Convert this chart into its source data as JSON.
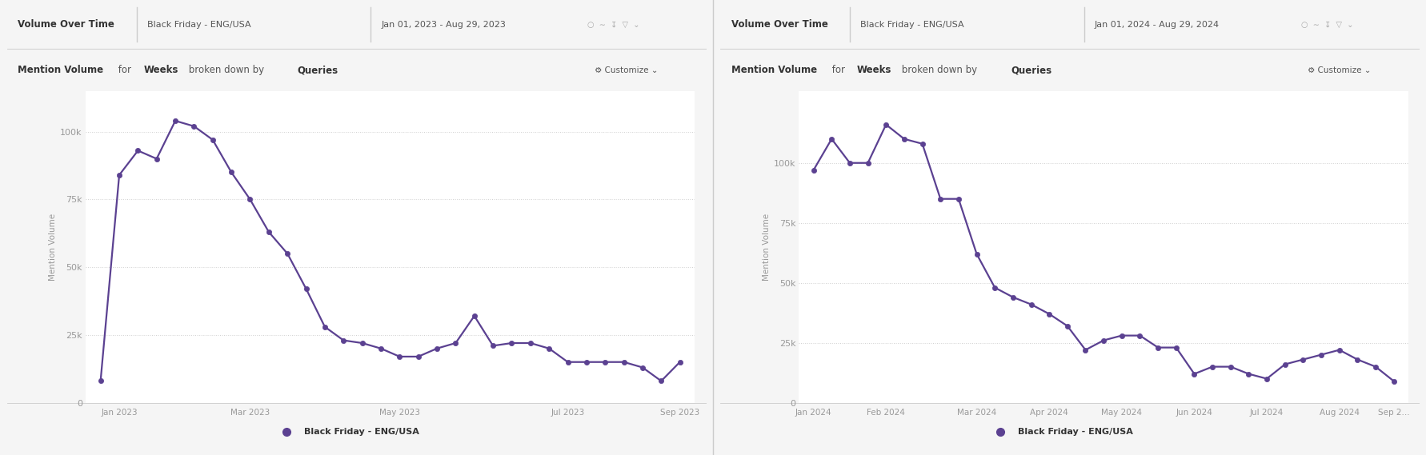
{
  "chart1": {
    "title_bar": "Volume Over Time",
    "query_label": "Black Friday - ENG/USA",
    "date_range": "Jan 01, 2023 - Aug 29, 2023",
    "ylabel": "Mention Volume",
    "yticks": [
      0,
      25000,
      50000,
      75000,
      100000
    ],
    "ytick_labels": [
      "0",
      "25k",
      "50k",
      "75k",
      "100k"
    ],
    "ylim": [
      0,
      115000
    ],
    "values": [
      8000,
      84000,
      93000,
      90000,
      104000,
      102000,
      97000,
      85000,
      75000,
      63000,
      55000,
      42000,
      28000,
      23000,
      22000,
      20000,
      17000,
      17000,
      20000,
      22000,
      32000,
      21000,
      22000,
      22000,
      20000,
      15000,
      15000,
      15000,
      15000,
      13000,
      8000,
      15000
    ],
    "xtick_pos": [
      1,
      8,
      16,
      25,
      31
    ],
    "xtick_labels": [
      "Jan 2023",
      "Mar 2023",
      "May 2023",
      "Jul 2023",
      "Sep 2023"
    ],
    "line_color": "#5b4191",
    "legend_label": "Black Friday - ENG/USA"
  },
  "chart2": {
    "title_bar": "Volume Over Time",
    "query_label": "Black Friday - ENG/USA",
    "date_range": "Jan 01, 2024 - Aug 29, 2024",
    "ylabel": "Mention Volume",
    "yticks": [
      0,
      25000,
      50000,
      75000,
      100000
    ],
    "ytick_labels": [
      "0",
      "25k",
      "50k",
      "75k",
      "100k"
    ],
    "ylim": [
      0,
      130000
    ],
    "values": [
      97000,
      110000,
      100000,
      100000,
      116000,
      110000,
      108000,
      85000,
      85000,
      62000,
      48000,
      44000,
      41000,
      37000,
      32000,
      22000,
      26000,
      28000,
      28000,
      23000,
      23000,
      12000,
      15000,
      15000,
      12000,
      10000,
      16000,
      18000,
      20000,
      22000,
      18000,
      15000,
      9000
    ],
    "xtick_pos": [
      0,
      4,
      9,
      13,
      17,
      21,
      25,
      29,
      32
    ],
    "xtick_labels": [
      "Jan 2024",
      "Feb 2024",
      "Mar 2024",
      "Apr 2024",
      "May 2024",
      "Jun 2024",
      "Jul 2024",
      "Aug 2024",
      "Sep 2..."
    ],
    "line_color": "#5b4191",
    "legend_label": "Black Friday - ENG/USA"
  },
  "panel_bg": "#ffffff",
  "fig_bg": "#f5f5f5",
  "header_bg": "#ffffff",
  "subheader_bg": "#f0f0f0",
  "grid_color": "#d0d0d0",
  "tick_color": "#999999",
  "text_dark": "#333333",
  "text_mid": "#555555",
  "separator_color": "#cccccc"
}
